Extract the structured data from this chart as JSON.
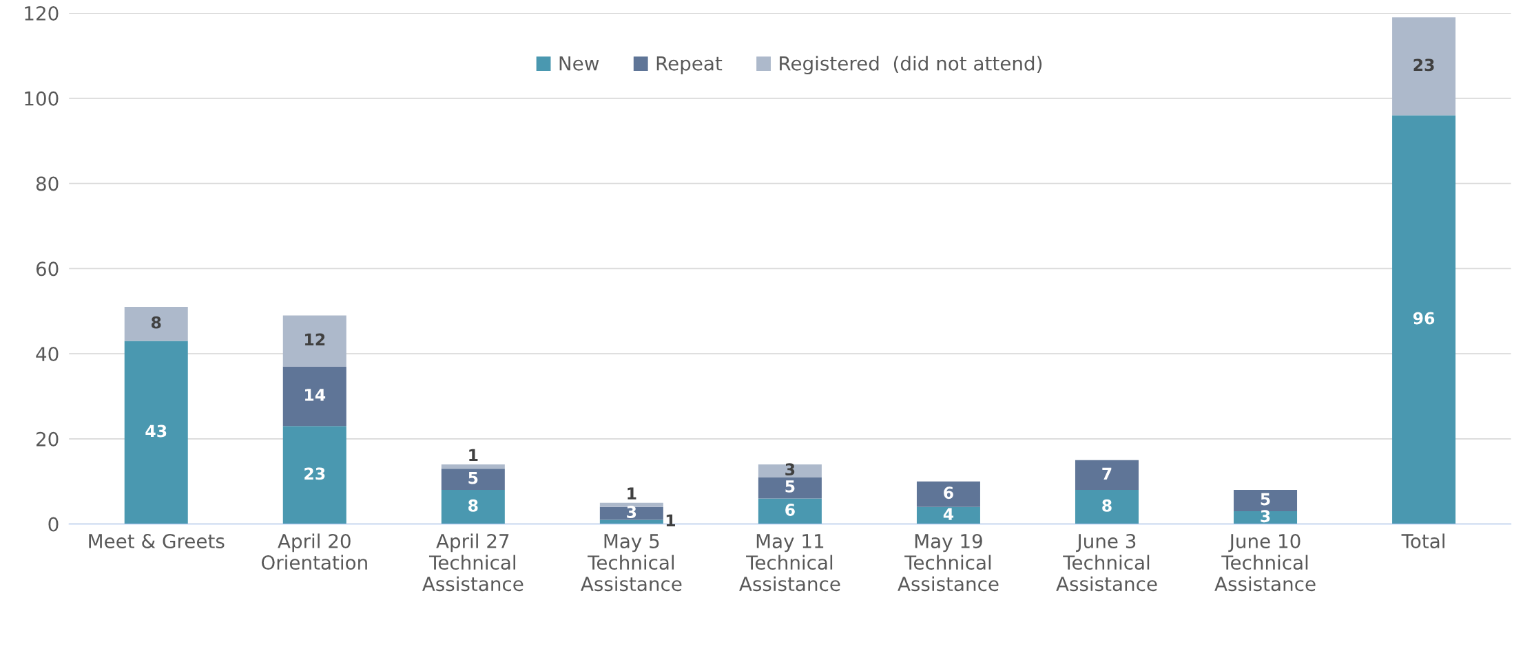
{
  "chart_data": {
    "type": "bar",
    "stacked": true,
    "categories": [
      "Meet & Greets",
      "April 20\nOrientation",
      "April 27\nTechnical\nAssistance",
      "May 5\nTechnical\nAssistance",
      "May 11\nTechnical\nAssistance",
      "May 19\nTechnical\nAssistance",
      "June 3\nTechnical\nAssistance",
      "June 10\nTechnical\nAssistance",
      "Total"
    ],
    "series": [
      {
        "name": "New",
        "color": "#4a98b0",
        "values": [
          43,
          23,
          8,
          1,
          6,
          4,
          8,
          3,
          96
        ],
        "value_labels": [
          "43",
          "23",
          "8",
          "1",
          "6",
          "4",
          "8",
          "3",
          "96"
        ]
      },
      {
        "name": "Repeat",
        "color": "#5f7597",
        "values": [
          0,
          14,
          5,
          3,
          5,
          6,
          7,
          5,
          0
        ],
        "value_labels": [
          null,
          "14",
          "5",
          "3",
          "5",
          "6",
          "7",
          "5",
          null
        ]
      },
      {
        "name": "Registered  (did not attend)",
        "color": "#adb9cb",
        "values": [
          8,
          12,
          1,
          1,
          3,
          0,
          0,
          0,
          23
        ],
        "value_labels": [
          "8",
          "12",
          "1",
          "1",
          "3",
          null,
          null,
          null,
          "23"
        ]
      }
    ],
    "ylim": [
      0,
      120
    ],
    "yticks": [
      0,
      20,
      40,
      60,
      80,
      100,
      120
    ],
    "grid": "y",
    "legend": "top"
  }
}
